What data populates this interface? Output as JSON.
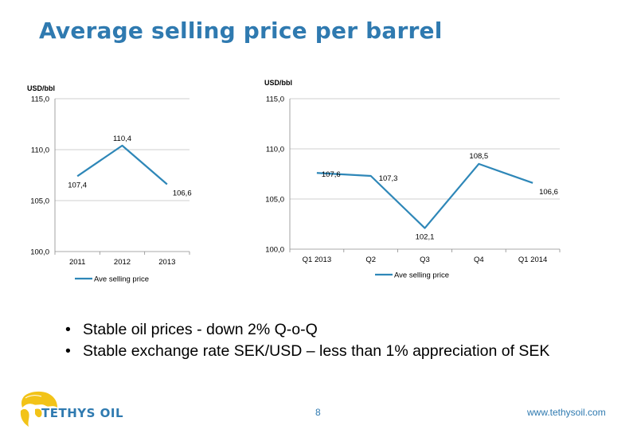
{
  "page": {
    "title": "Average selling price per barrel",
    "bullets": [
      "Stable oil prices - down 2% Q-o-Q",
      "Stable exchange rate SEK/USD – less than 1% appreciation of SEK"
    ],
    "bullet_marker": "•",
    "logo_text": "TETHYS OIL",
    "page_number": "8",
    "website": "www.tethysoil.com",
    "accent_color": "#2f7ab0",
    "logo_color": "#f2c318",
    "line_color": "#2e87b8"
  },
  "chart_data": [
    {
      "type": "line",
      "unit_label": "USD/bbl",
      "categories": [
        "2011",
        "2012",
        "2013"
      ],
      "series": [
        {
          "name": "Ave selling price",
          "values": [
            107.4,
            110.4,
            106.6
          ],
          "labels": [
            "107,4",
            "110,4",
            "106,6"
          ]
        }
      ],
      "yticks": [
        "100,0",
        "105,0",
        "110,0",
        "115,0"
      ],
      "ylim": [
        100,
        115
      ],
      "grid": true,
      "legend": "bottom-left"
    },
    {
      "type": "line",
      "unit_label": "USD/bbl",
      "categories": [
        "Q1 2013",
        "Q2",
        "Q3",
        "Q4",
        "Q1 2014"
      ],
      "series": [
        {
          "name": "Ave selling price",
          "values": [
            107.6,
            107.3,
            102.1,
            108.5,
            106.6
          ],
          "labels": [
            "107,6",
            "107,3",
            "102,1",
            "108,5",
            "106,6"
          ]
        }
      ],
      "yticks": [
        "100,0",
        "105,0",
        "110,0",
        "115,0"
      ],
      "ylim": [
        100,
        115
      ],
      "grid": true,
      "legend": "bottom-center"
    }
  ]
}
